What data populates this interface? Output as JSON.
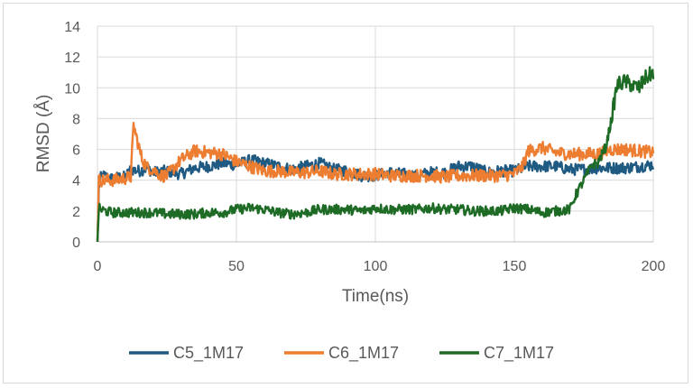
{
  "chart_data": {
    "type": "line",
    "title": "",
    "xlabel": "Time(ns)",
    "ylabel": "RMSD (Å)",
    "xlim": [
      0,
      200
    ],
    "ylim": [
      0,
      14
    ],
    "xticks": [
      0,
      50,
      100,
      150,
      200
    ],
    "yticks": [
      0,
      2,
      4,
      6,
      8,
      10,
      12,
      14
    ],
    "grid": true,
    "legend_position": "bottom",
    "series": [
      {
        "name": "C5_1M17",
        "color": "#1f5a82",
        "x": [
          0,
          0.5,
          1,
          2,
          5,
          8,
          10,
          12,
          15,
          18,
          20,
          25,
          30,
          35,
          40,
          45,
          50,
          55,
          60,
          65,
          70,
          75,
          80,
          85,
          90,
          95,
          100,
          105,
          110,
          115,
          120,
          125,
          130,
          135,
          140,
          145,
          150,
          155,
          160,
          165,
          170,
          175,
          180,
          185,
          190,
          195,
          200
        ],
        "y": [
          0,
          3.4,
          4.1,
          4.3,
          4.1,
          4.2,
          4.2,
          4.7,
          4.6,
          4.8,
          4.5,
          4.6,
          4.4,
          4.8,
          4.9,
          5.1,
          5.0,
          5.3,
          5.1,
          4.9,
          4.7,
          4.9,
          5.1,
          4.7,
          4.6,
          4.3,
          4.3,
          4.5,
          4.4,
          4.3,
          4.5,
          4.5,
          4.9,
          4.9,
          4.5,
          4.6,
          4.6,
          4.9,
          4.9,
          4.9,
          4.7,
          4.7,
          4.8,
          4.8,
          4.8,
          4.9,
          5.0
        ]
      },
      {
        "name": "C6_1M17",
        "color": "#ed7d31",
        "x": [
          0,
          0.5,
          1,
          3,
          6,
          9,
          12,
          13,
          14,
          16,
          18,
          20,
          23,
          25,
          30,
          35,
          40,
          45,
          50,
          55,
          60,
          65,
          70,
          75,
          80,
          85,
          90,
          95,
          100,
          105,
          110,
          115,
          120,
          125,
          130,
          135,
          140,
          145,
          150,
          153,
          155,
          160,
          165,
          170,
          175,
          180,
          185,
          190,
          195,
          200
        ],
        "y": [
          0,
          4.0,
          4.0,
          4.0,
          4.0,
          4.1,
          4.2,
          7.6,
          6.8,
          5.4,
          4.8,
          4.7,
          4.3,
          4.3,
          5.3,
          5.9,
          5.8,
          5.7,
          5.2,
          4.9,
          4.6,
          4.6,
          4.5,
          4.5,
          4.6,
          4.4,
          4.4,
          4.4,
          4.4,
          4.3,
          4.3,
          4.3,
          4.3,
          4.2,
          4.3,
          4.3,
          4.3,
          4.3,
          4.4,
          4.9,
          5.9,
          6.1,
          5.8,
          5.7,
          5.7,
          5.7,
          6.0,
          6.0,
          5.9,
          5.8
        ]
      },
      {
        "name": "C7_1M17",
        "color": "#1e6b25",
        "x": [
          0,
          0.5,
          1,
          3,
          5,
          10,
          15,
          20,
          25,
          30,
          35,
          40,
          45,
          50,
          55,
          60,
          65,
          70,
          75,
          80,
          85,
          90,
          95,
          100,
          105,
          110,
          115,
          120,
          125,
          130,
          135,
          140,
          145,
          150,
          155,
          160,
          165,
          170,
          172,
          175,
          178,
          180,
          183,
          185,
          187,
          190,
          193,
          195,
          197,
          200
        ],
        "y": [
          0,
          2.2,
          2.1,
          2.0,
          1.9,
          1.9,
          1.9,
          1.9,
          1.8,
          1.8,
          1.8,
          1.9,
          1.9,
          2.1,
          2.2,
          2.1,
          1.9,
          1.8,
          1.9,
          2.1,
          2.1,
          2.1,
          2.0,
          2.2,
          2.1,
          2.1,
          2.1,
          2.2,
          2.1,
          2.1,
          2.0,
          2.0,
          2.0,
          2.2,
          2.1,
          1.9,
          2.0,
          2.1,
          3.0,
          4.0,
          5.0,
          5.1,
          6.2,
          8.0,
          10.2,
          10.4,
          10.1,
          10.0,
          10.6,
          11.0
        ]
      }
    ]
  }
}
